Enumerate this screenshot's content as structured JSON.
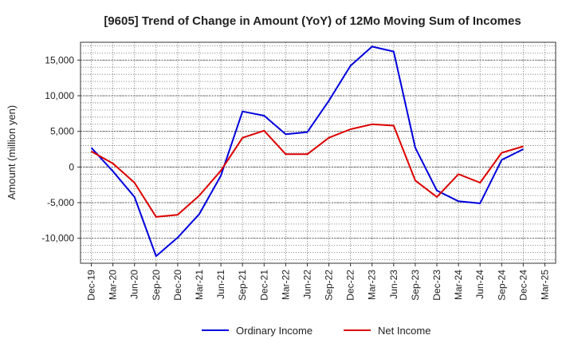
{
  "chart_data": {
    "type": "line",
    "title": "[9605]  Trend of Change in Amount (YoY) of 12Mo Moving Sum of Incomes",
    "xlabel": "",
    "ylabel": "Amount (million yen)",
    "ylim": [
      -13500,
      17500
    ],
    "yticks": [
      -10000,
      -5000,
      0,
      5000,
      10000,
      15000
    ],
    "ytick_labels": [
      "-10,000",
      "-5,000",
      "0",
      "5,000",
      "10,000",
      "15,000"
    ],
    "categories": [
      "Dec-19",
      "Mar-20",
      "Jun-20",
      "Sep-20",
      "Dec-20",
      "Mar-21",
      "Jun-21",
      "Sep-21",
      "Dec-21",
      "Mar-22",
      "Jun-22",
      "Sep-22",
      "Dec-22",
      "Mar-23",
      "Jun-23",
      "Sep-23",
      "Dec-23",
      "Mar-24",
      "Jun-24",
      "Sep-24",
      "Dec-24",
      "Mar-25"
    ],
    "grid": true,
    "legend_position": "bottom",
    "series": [
      {
        "name": "Ordinary Income",
        "color": "#0000dd",
        "values": [
          2700,
          -600,
          -4200,
          -12500,
          -9900,
          -6600,
          -1200,
          7800,
          7200,
          4600,
          4900,
          9300,
          14200,
          16900,
          16200,
          2700,
          -3300,
          -4800,
          -5100,
          1000,
          2500,
          null
        ]
      },
      {
        "name": "Net Income",
        "color": "#dd0000",
        "values": [
          2200,
          500,
          -2200,
          -7000,
          -6700,
          -4000,
          -500,
          4100,
          5100,
          1800,
          1800,
          4100,
          5300,
          6000,
          5800,
          -1900,
          -4200,
          -1000,
          -2200,
          2000,
          2900,
          null
        ]
      }
    ]
  }
}
